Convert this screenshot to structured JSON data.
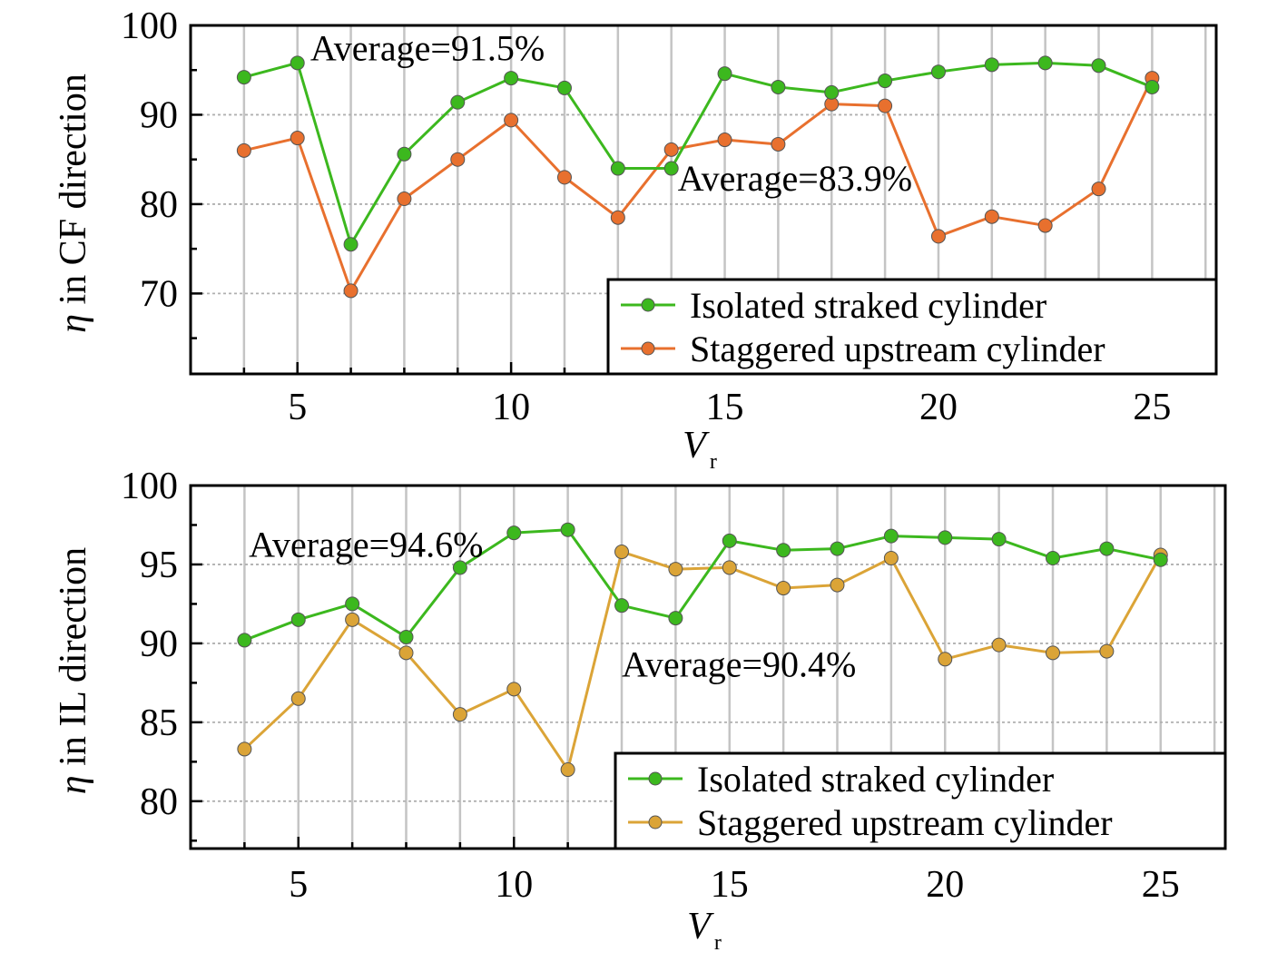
{
  "chart_data": [
    {
      "type": "line",
      "title": "",
      "xlabel": {
        "main": "V",
        "sub": "r"
      },
      "ylabel": {
        "eta": "η",
        "rest": " in CF direction"
      },
      "xlim": [
        2.5,
        26.5
      ],
      "ylim": [
        61,
        100
      ],
      "xticks": [
        5,
        10,
        15,
        20,
        25
      ],
      "yticks": [
        70,
        80,
        90,
        100
      ],
      "grid": true,
      "series": [
        {
          "name": "Isolated straked cylinder",
          "color": "#3cb81e",
          "x": [
            3.75,
            5.0,
            6.25,
            7.5,
            8.75,
            10.0,
            11.25,
            12.5,
            13.75,
            15.0,
            16.25,
            17.5,
            18.75,
            20.0,
            21.25,
            22.5,
            23.75,
            25.0
          ],
          "y": [
            94.2,
            95.8,
            75.5,
            85.6,
            91.4,
            94.1,
            93.0,
            84.0,
            84.0,
            94.6,
            93.1,
            92.5,
            93.8,
            94.8,
            95.6,
            95.8,
            95.5,
            93.1
          ]
        },
        {
          "name": "Staggered upstream cylinder",
          "color": "#e8702e",
          "x": [
            3.75,
            5.0,
            6.25,
            7.5,
            8.75,
            10.0,
            11.25,
            12.5,
            13.75,
            15.0,
            16.25,
            17.5,
            18.75,
            20.0,
            21.25,
            22.5,
            23.75,
            25.0
          ],
          "y": [
            86.0,
            87.4,
            70.3,
            80.6,
            85.0,
            89.4,
            83.0,
            78.5,
            86.1,
            87.2,
            86.7,
            91.2,
            91.0,
            76.4,
            78.6,
            77.6,
            81.7,
            94.1
          ]
        }
      ],
      "annotations": [
        {
          "text": "Average=91.5%",
          "x": 5.3,
          "y": 96.1
        },
        {
          "text": "Average=83.9%",
          "x": 13.9,
          "y": 81.5
        }
      ],
      "legend": "bottom-right"
    },
    {
      "type": "line",
      "title": "",
      "xlabel": {
        "main": "V",
        "sub": "r"
      },
      "ylabel": {
        "eta": "η",
        "rest": " in IL direction"
      },
      "xlim": [
        2.5,
        26.5
      ],
      "ylim": [
        77,
        100
      ],
      "xticks": [
        5,
        10,
        15,
        20,
        25
      ],
      "yticks": [
        80,
        85,
        90,
        95,
        100
      ],
      "grid": true,
      "series": [
        {
          "name": "Isolated straked cylinder",
          "color": "#3cb81e",
          "x": [
            3.75,
            5.0,
            6.25,
            7.5,
            8.75,
            10.0,
            11.25,
            12.5,
            13.75,
            15.0,
            16.25,
            17.5,
            18.75,
            20.0,
            21.25,
            22.5,
            23.75,
            25.0
          ],
          "y": [
            90.2,
            91.5,
            92.5,
            90.4,
            94.8,
            97.0,
            97.2,
            92.4,
            91.6,
            96.5,
            95.9,
            96.0,
            96.8,
            96.7,
            96.6,
            95.4,
            96.0,
            95.3
          ]
        },
        {
          "name": "Staggered upstream cylinder",
          "color": "#dba437",
          "x": [
            3.75,
            5.0,
            6.25,
            7.5,
            8.75,
            10.0,
            11.25,
            12.5,
            13.75,
            15.0,
            16.25,
            17.5,
            18.75,
            20.0,
            21.25,
            22.5,
            23.75,
            25.0
          ],
          "y": [
            83.3,
            86.5,
            91.5,
            89.4,
            85.5,
            87.1,
            82.0,
            95.8,
            94.7,
            94.8,
            93.5,
            93.7,
            95.4,
            89.0,
            89.9,
            89.4,
            89.5,
            95.6
          ]
        }
      ],
      "annotations": [
        {
          "text": "Average=94.6%",
          "x": 3.85,
          "y": 95.5
        },
        {
          "text": "Average=90.4%",
          "x": 12.5,
          "y": 87.9
        }
      ],
      "legend": "bottom-right"
    }
  ]
}
